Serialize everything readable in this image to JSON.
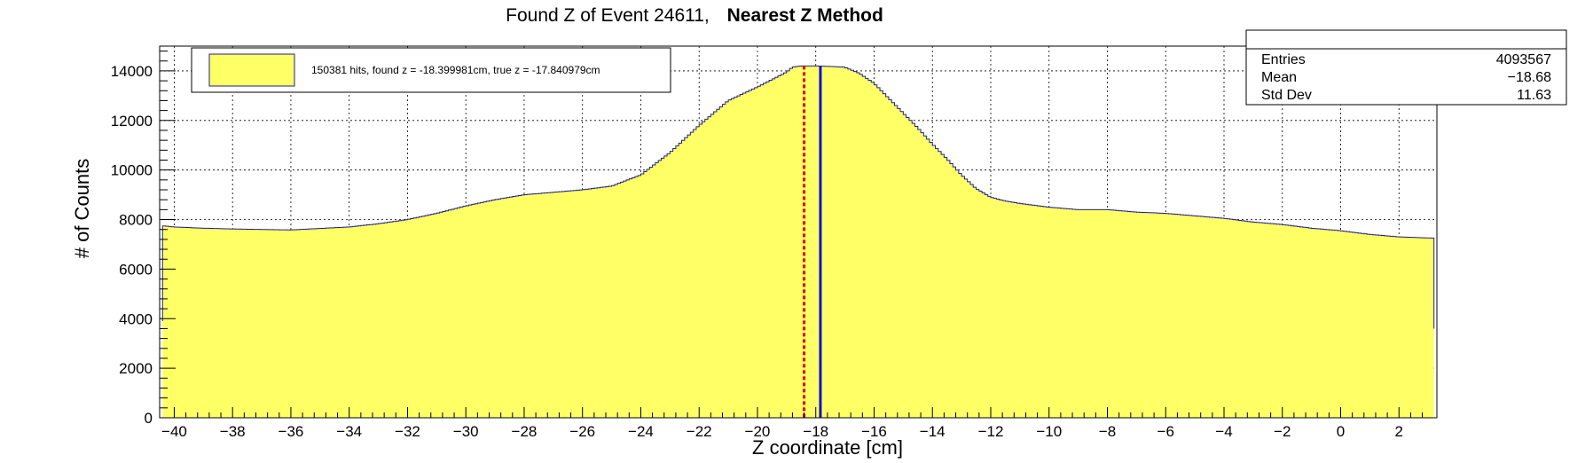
{
  "colors": {
    "fill": "#ffff66",
    "outline": "#1f1f8f",
    "found_line": "#e00000",
    "true_line": "#1010d0",
    "grid": "#000000"
  },
  "chart_data": {
    "type": "area",
    "title_plain": "Found Z of Event 24611,",
    "title_bold": "Nearest Z Method",
    "xlabel": "Z coordinate [cm]",
    "ylabel": "# of Counts",
    "xlim": [
      -40.5,
      3.3
    ],
    "ylim": [
      0,
      15000
    ],
    "xticks": [
      -40,
      -38,
      -36,
      -34,
      -32,
      -30,
      -28,
      -26,
      -24,
      -22,
      -20,
      -18,
      -16,
      -14,
      -12,
      -10,
      -8,
      -6,
      -4,
      -2,
      0,
      2
    ],
    "xtick_labels": [
      "−40",
      "−38",
      "−36",
      "−34",
      "−32",
      "−30",
      "−28",
      "−26",
      "−24",
      "−22",
      "−20",
      "−18",
      "−16",
      "−14",
      "−12",
      "−10",
      "−8",
      "−6",
      "−4",
      "−2",
      "0",
      "2"
    ],
    "yticks": [
      0,
      2000,
      4000,
      6000,
      8000,
      10000,
      12000,
      14000
    ],
    "ytick_labels": [
      "0",
      "2000",
      "4000",
      "6000",
      "8000",
      "10000",
      "12000",
      "14000"
    ],
    "grid": true,
    "histogram": {
      "x": [
        -40.4,
        -40,
        -39,
        -38,
        -37,
        -36,
        -35,
        -34,
        -33,
        -32,
        -31,
        -30,
        -29,
        -28,
        -27,
        -26,
        -25,
        -24,
        -23,
        -22,
        -21,
        -20,
        -19.5,
        -19,
        -18.8,
        -18.5,
        -18.0,
        -17.5,
        -17.0,
        -16.5,
        -16,
        -15.5,
        -15,
        -14.5,
        -14,
        -13.5,
        -13,
        -12.5,
        -12,
        -11.5,
        -11,
        -10,
        -9,
        -8,
        -7,
        -6,
        -5,
        -4,
        -3,
        -2,
        -1,
        0,
        1,
        2,
        3.2
      ],
      "y": [
        7750,
        7700,
        7650,
        7620,
        7600,
        7580,
        7640,
        7700,
        7830,
        8000,
        8250,
        8550,
        8800,
        9000,
        9100,
        9200,
        9350,
        9800,
        10700,
        11800,
        12800,
        13350,
        13650,
        13950,
        14150,
        14200,
        14200,
        14180,
        14150,
        13900,
        13500,
        12900,
        12300,
        11700,
        11050,
        10450,
        9800,
        9250,
        8900,
        8750,
        8650,
        8500,
        8400,
        8400,
        8300,
        8250,
        8150,
        8050,
        7900,
        7800,
        7650,
        7550,
        7400,
        7300,
        7250
      ]
    },
    "found_z": -18.399981,
    "true_z": -17.840979,
    "legend": {
      "position": "top-left",
      "entry": "150381 hits, found z = -18.399981cm, true z = -17.840979cm"
    },
    "stats": {
      "position": "top-right",
      "rows": [
        {
          "label": "Entries",
          "value": "4093567"
        },
        {
          "label": "Mean",
          "value": "−18.68"
        },
        {
          "label": "Std Dev",
          "value": "11.63"
        }
      ]
    }
  }
}
